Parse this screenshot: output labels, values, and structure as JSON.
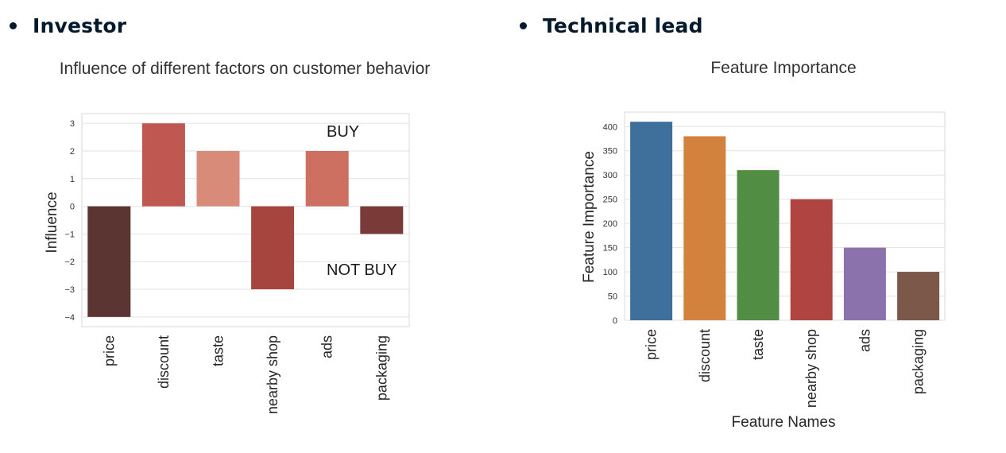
{
  "sections": [
    {
      "label": "Investor"
    },
    {
      "label": "Technical lead"
    }
  ],
  "chart_data": [
    {
      "type": "bar",
      "title": "Influence of different factors on customer behavior",
      "xlabel": "",
      "ylabel": "Influence",
      "categories": [
        "price",
        "discount",
        "taste",
        "nearby shop",
        "ads",
        "packaging"
      ],
      "values": [
        -4,
        3,
        2,
        -3,
        2,
        -1
      ],
      "colors": [
        "#5a3532",
        "#bf5850",
        "#d98b7a",
        "#a6453e",
        "#cd7062",
        "#7a3a38"
      ],
      "ylim": [
        -4.35,
        3.35
      ],
      "yticks": [
        3,
        2,
        1,
        0,
        -1,
        -2,
        -3,
        -4
      ],
      "ytick_labels": [
        "3",
        "2",
        "1",
        "0",
        "−1",
        "−2",
        "−3",
        "−4"
      ],
      "annotations": [
        "BUY",
        "NOT BUY"
      ],
      "grid": true
    },
    {
      "type": "bar",
      "title": "Feature Importance",
      "xlabel": "Feature Names",
      "ylabel": "Feature Importance",
      "categories": [
        "price",
        "discount",
        "taste",
        "nearby shop",
        "ads",
        "packaging"
      ],
      "values": [
        410,
        380,
        310,
        250,
        150,
        100
      ],
      "colors": [
        "#3f709b",
        "#d3823e",
        "#518e43",
        "#b04440",
        "#8c72ad",
        "#7b5849"
      ],
      "ylim": [
        0,
        430
      ],
      "yticks": [
        0,
        50,
        100,
        150,
        200,
        250,
        300,
        350,
        400
      ],
      "ytick_labels": [
        "0",
        "50",
        "100",
        "150",
        "200",
        "250",
        "300",
        "350",
        "400"
      ],
      "grid": true
    }
  ]
}
